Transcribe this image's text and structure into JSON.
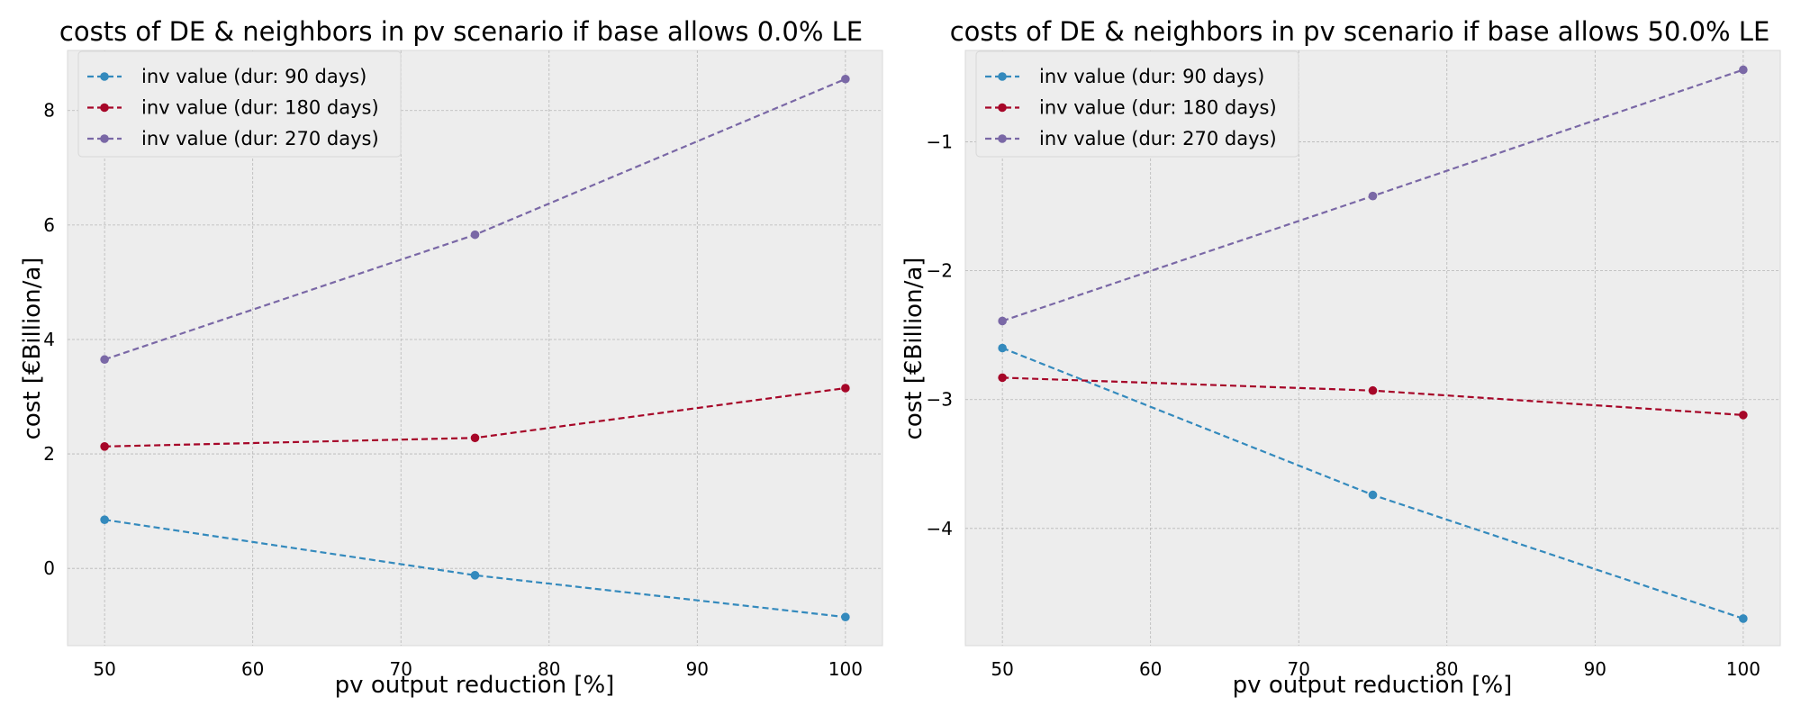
{
  "colors": {
    "series_90": "#348ABD",
    "series_180": "#A60628",
    "series_270": "#7A68A6"
  },
  "chart_data": [
    {
      "type": "line",
      "title": "costs of DE & neighbors in pv scenario if base allows 0.0% LE",
      "xlabel": "pv output reduction [%]",
      "ylabel": "cost [€Billion/a]",
      "x": [
        50,
        75,
        100
      ],
      "xlim": [
        47.5,
        102.5
      ],
      "ylim": [
        -1.35,
        9.05
      ],
      "xticks": [
        50,
        60,
        70,
        80,
        90,
        100
      ],
      "yticks": [
        0,
        2,
        4,
        6,
        8
      ],
      "ytick_labels": [
        "0",
        "2",
        "4",
        "6",
        "8"
      ],
      "grid": true,
      "legend_position": "top-left",
      "series": [
        {
          "name": "inv value (dur: 90 days)",
          "values": [
            0.85,
            -0.12,
            -0.85
          ],
          "color_key": "series_90"
        },
        {
          "name": "inv value (dur: 180 days)",
          "values": [
            2.13,
            2.28,
            3.15
          ],
          "color_key": "series_180"
        },
        {
          "name": "inv value (dur: 270 days)",
          "values": [
            3.65,
            5.83,
            8.55
          ],
          "color_key": "series_270"
        }
      ]
    },
    {
      "type": "line",
      "title": "costs of DE & neighbors in pv scenario if base allows 50.0% LE",
      "xlabel": "pv output reduction [%]",
      "ylabel": "cost [€Billion/a]",
      "x": [
        50,
        75,
        100
      ],
      "xlim": [
        47.5,
        102.5
      ],
      "ylim": [
        -4.91,
        -0.29
      ],
      "xticks": [
        50,
        60,
        70,
        80,
        90,
        100
      ],
      "yticks": [
        -4,
        -3,
        -2,
        -1
      ],
      "ytick_labels": [
        "−4",
        "−3",
        "−2",
        "−1"
      ],
      "grid": true,
      "legend_position": "top-left",
      "series": [
        {
          "name": "inv value (dur: 90 days)",
          "values": [
            -2.6,
            -3.74,
            -4.7
          ],
          "color_key": "series_90"
        },
        {
          "name": "inv value (dur: 180 days)",
          "values": [
            -2.83,
            -2.93,
            -3.12
          ],
          "color_key": "series_180"
        },
        {
          "name": "inv value (dur: 270 days)",
          "values": [
            -2.39,
            -1.42,
            -0.44
          ],
          "color_key": "series_270"
        }
      ]
    }
  ]
}
